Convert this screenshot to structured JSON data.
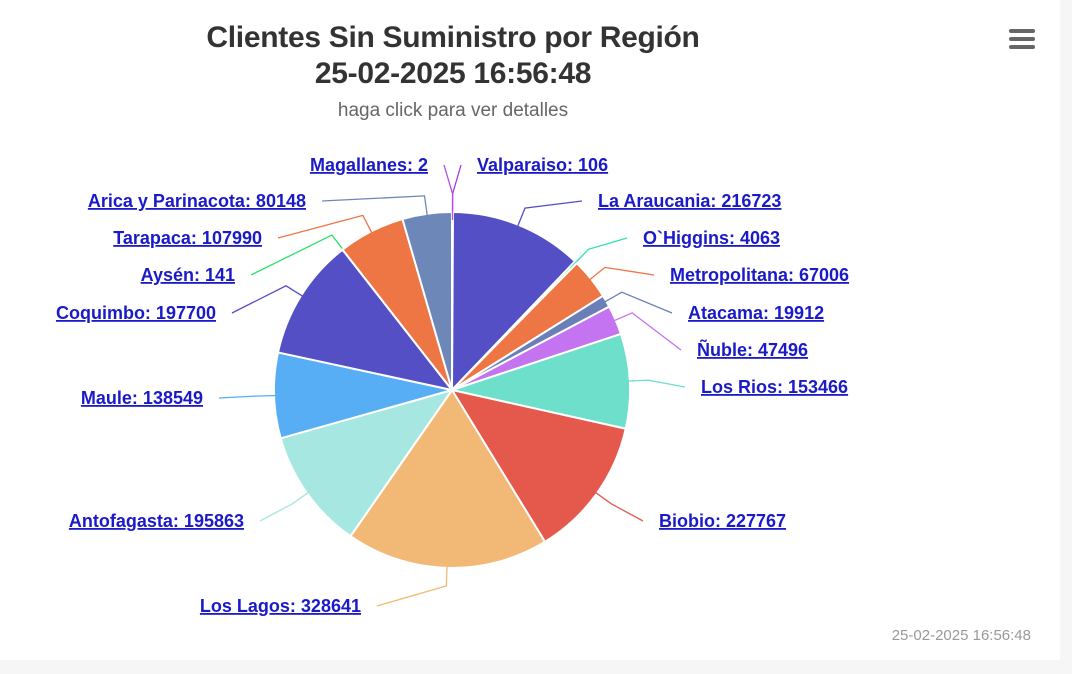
{
  "title_line1": "Clientes Sin Suministro por Región",
  "title_line2": "25-02-2025 16:56:48",
  "subtitle": "haga click para ver detalles",
  "credit": "25-02-2025 16:56:48",
  "menu_icon": "hamburger-menu-icon",
  "chart_data": {
    "type": "pie",
    "title": "Clientes Sin Suministro por Región 25-02-2025 16:56:48",
    "subtitle": "haga click para ver detalles",
    "slices": [
      {
        "name": "Valparaiso",
        "value": 106,
        "label": "Valparaiso: 106",
        "color": "#a63ae0"
      },
      {
        "name": "La Araucania",
        "value": 216723,
        "label": "La Araucania: 216723",
        "color": "#544fc5"
      },
      {
        "name": "O`Higgins",
        "value": 4063,
        "label": "O`Higgins: 4063",
        "color": "#2ee0b3"
      },
      {
        "name": "Metropolitana",
        "value": 67006,
        "label": "Metropolitana: 67006",
        "color": "#ee7544"
      },
      {
        "name": "Atacama",
        "value": 19912,
        "label": "Atacama: 19912",
        "color": "#6a7fb8"
      },
      {
        "name": "Ñuble",
        "value": 47496,
        "label": "Ñuble: 47496",
        "color": "#c474f0"
      },
      {
        "name": "Los Rios",
        "value": 153466,
        "label": "Los Rios: 153466",
        "color": "#6ddfcb"
      },
      {
        "name": "Biobio",
        "value": 227767,
        "label": "Biobio: 227767",
        "color": "#e4594c"
      },
      {
        "name": "Los Lagos",
        "value": 328641,
        "label": "Los Lagos: 328641",
        "color": "#f2b976"
      },
      {
        "name": "Antofagasta",
        "value": 195863,
        "label": "Antofagasta: 195863",
        "color": "#a6e7e1"
      },
      {
        "name": "Maule",
        "value": 138549,
        "label": "Maule: 138549",
        "color": "#57aef4"
      },
      {
        "name": "Coquimbo",
        "value": 197700,
        "label": "Coquimbo: 197700",
        "color": "#544fc5"
      },
      {
        "name": "Aysén",
        "value": 141,
        "label": "Aysén: 141",
        "color": "#2ee06a"
      },
      {
        "name": "Tarapaca",
        "value": 107990,
        "label": "Tarapaca: 107990",
        "color": "#ee7544"
      },
      {
        "name": "Arica y Parinacota",
        "value": 80148,
        "label": "Arica y Parinacota: 80148",
        "color": "#6d88b8"
      },
      {
        "name": "Magallanes",
        "value": 2,
        "label": "Magallanes: 2",
        "color": "#b44de0"
      }
    ]
  }
}
